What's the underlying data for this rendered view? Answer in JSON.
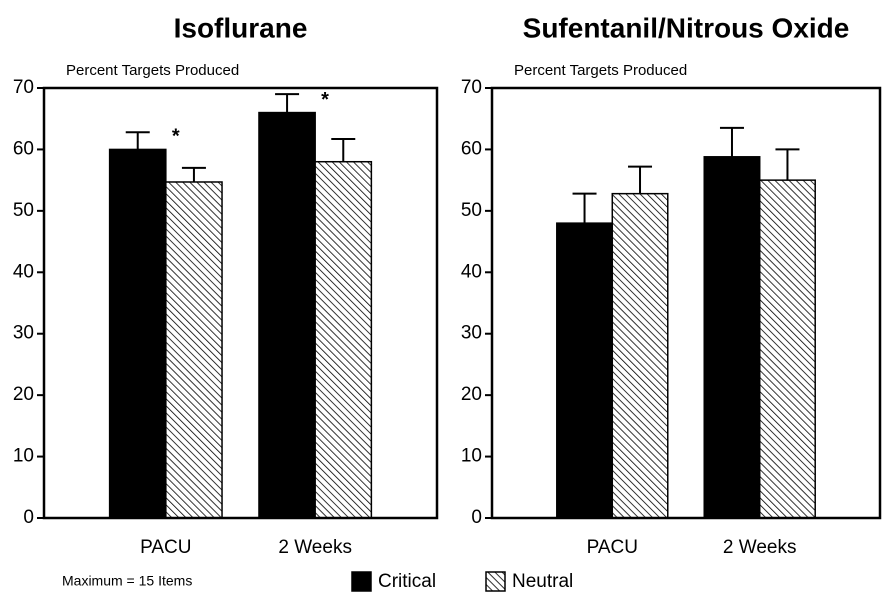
{
  "chart_data": [
    {
      "type": "bar",
      "title": "Isoflurane",
      "ylabel": "Percent Targets Produced",
      "categories": [
        "PACU",
        "2  Weeks"
      ],
      "series": [
        {
          "name": "Critical",
          "color": "#000000",
          "values": [
            60,
            66
          ],
          "errors": [
            2.8,
            3
          ]
        },
        {
          "name": "Neutral",
          "color": "#000000",
          "pattern": "hatch",
          "values": [
            54.7,
            58
          ],
          "errors": [
            2.3,
            3.7
          ]
        }
      ],
      "annotations": [
        "*",
        "*"
      ],
      "ylim": [
        0,
        70
      ],
      "yticks": [
        0,
        10,
        20,
        30,
        40,
        50,
        60,
        70
      ],
      "footnote": "Maximum = 15 Items"
    },
    {
      "type": "bar",
      "title": "Sufentanil/Nitrous Oxide",
      "ylabel": "Percent Targets Produced",
      "categories": [
        "PACU",
        "2  Weeks"
      ],
      "series": [
        {
          "color": "#000000",
          "values": [
            48,
            58.8
          ],
          "errors": [
            4.8,
            4.7
          ]
        },
        {
          "color": "#000000",
          "pattern": "hatch",
          "values": [
            52.8,
            55
          ],
          "errors": [
            4.4,
            5
          ]
        }
      ],
      "ylim": [
        0,
        70
      ],
      "yticks": [
        0,
        10,
        20,
        30,
        40,
        50,
        60,
        70
      ]
    }
  ]
}
